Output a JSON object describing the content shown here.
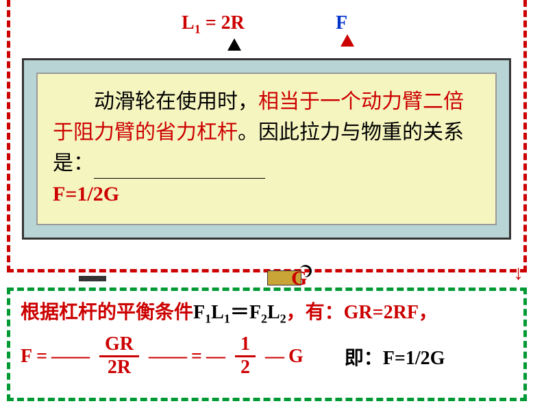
{
  "colors": {
    "red": "#cc0000",
    "green": "#009933",
    "blue": "#0033cc",
    "yellow_bg": "#f5f5c0",
    "teal_bg": "#b8d4d4",
    "gold": "#c9a538"
  },
  "top": {
    "l1_label_pre": "L",
    "l1_sub": "1",
    "l1_label_post": " = 2R",
    "f_label": "F"
  },
  "yellow_box": {
    "indent": "　　",
    "text1": "动滑轮在使用时，",
    "text2_red": "相当于一个动力臂二倍于阻力臂的省力杠杆",
    "text3": "。因此拉力与物重的关系是：",
    "formula": "F=1/2G"
  },
  "mid": {
    "g_label": "G"
  },
  "bottom": {
    "line1_prefix": "根据杠杆的平衡条件",
    "f1": "F",
    "sub1": "1",
    "l1": "L",
    "eq_sign": "＝",
    "f2": "F",
    "sub2": "2",
    "l2": "L",
    "line1_mid": "，有：",
    "line1_eq": "GR=2RF",
    "line1_suffix": "，",
    "line2_f": "F = ",
    "frac1_top": "GR",
    "frac1_bot": "2R",
    "eq2": " = ",
    "frac2_top": "1",
    "frac2_bot": "2",
    "g_after": "G",
    "result_label": "即：",
    "result_eq": "F=1/2G"
  }
}
